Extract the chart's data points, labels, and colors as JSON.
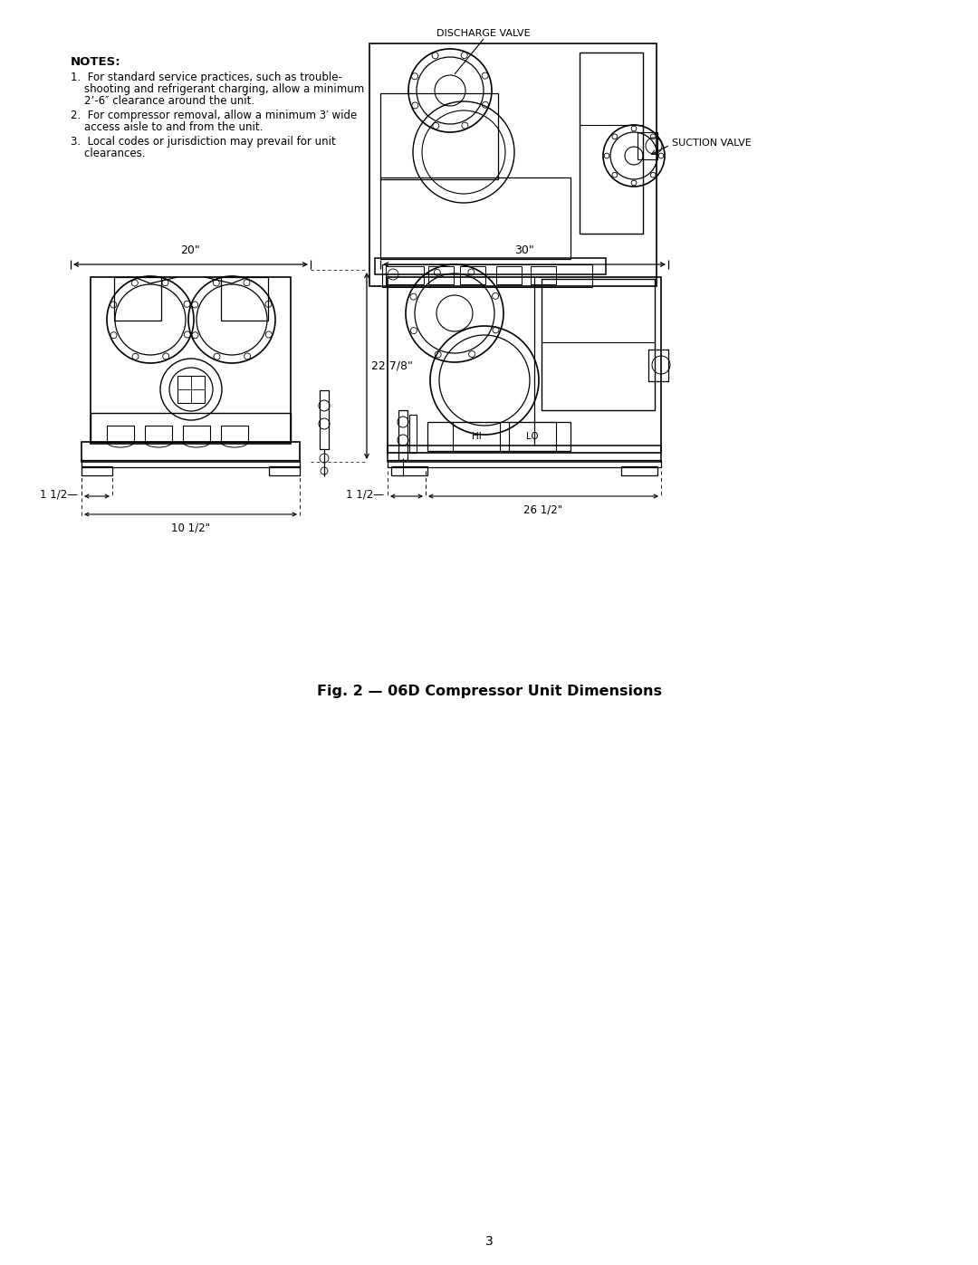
{
  "bg_color": "#ffffff",
  "text_color": "#000000",
  "title": "Fig. 2 — 06D Compressor Unit Dimensions",
  "page_number": "3",
  "notes_header": "NOTES:",
  "note1_line1": "1.  For standard service practices, such as trouble-",
  "note1_line2": "    shooting and refrigerant charging, allow a minimum",
  "note1_line3": "    2’-6″ clearance around the unit.",
  "note2_line1": "2.  For compressor removal, allow a minimum 3′ wide",
  "note2_line2": "    access aisle to and from the unit.",
  "note3_line1": "3.  Local codes or jurisdiction may prevail for unit",
  "note3_line2": "    clearances.",
  "dim_20": "20\"",
  "dim_30": "30\"",
  "dim_22_7_8": "22 7/8\"",
  "dim_1_1_2_left": "1 1/2—",
  "dim_10_1_2": "10 1/2\"",
  "dim_1_1_2_right": "1 1/2—",
  "dim_26_1_2": "26 1/2\"",
  "label_discharge": "DISCHARGE VALVE",
  "label_suction": "SUCTION VALVE",
  "label_hi": "HI",
  "label_lo": "LO"
}
